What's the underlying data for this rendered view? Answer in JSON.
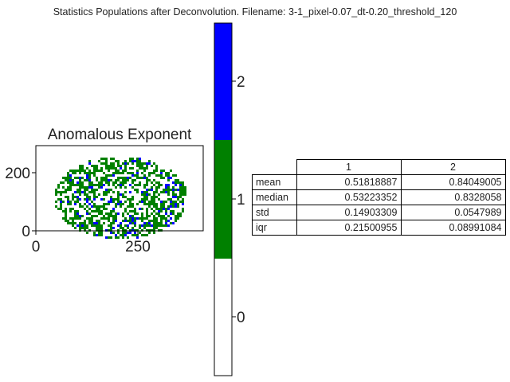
{
  "suptitle": "Statistics Populations after Deconvolution. Filename: 3-1_pixel-0.07_dt-0.20_threshold_120",
  "colors": {
    "class0": "#ffffff",
    "class1": "#008000",
    "class2": "#0000ff",
    "frame": "#000000"
  },
  "chart_data": [
    {
      "type": "heatmap",
      "title": "Anomalous Exponent",
      "x_ticks": [
        "0",
        "250"
      ],
      "y_ticks": [
        "0",
        "200"
      ],
      "xlim": [
        0,
        400
      ],
      "ylim": [
        0,
        260
      ],
      "classes": [
        0,
        1,
        2
      ],
      "description_of_content": ""
    },
    {
      "type": "colorbar",
      "ticks": [
        "0",
        "1",
        "2"
      ],
      "range": [
        -0.5,
        2.5
      ],
      "segments": [
        {
          "class": "0",
          "color": "#ffffff"
        },
        {
          "class": "1",
          "color": "#008000"
        },
        {
          "class": "2",
          "color": "#0000ff"
        }
      ]
    },
    {
      "type": "table",
      "columns": [
        "1",
        "2"
      ],
      "rows": [
        {
          "label": "mean",
          "values": [
            "0.51818887",
            "0.84049005"
          ]
        },
        {
          "label": "median",
          "values": [
            "0.53223352",
            "0.8328058"
          ]
        },
        {
          "label": "std",
          "values": [
            "0.14903309",
            "0.0547989"
          ]
        },
        {
          "label": "iqr",
          "values": [
            "0.21500955",
            "0.08991084"
          ]
        }
      ]
    }
  ]
}
